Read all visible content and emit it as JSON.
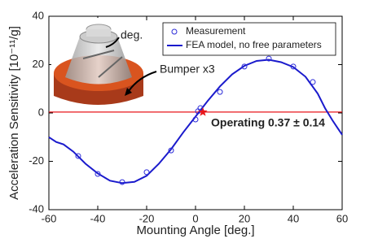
{
  "chart_data": {
    "type": "scatter-line",
    "xlabel": "Mounting Angle [deg.]",
    "ylabel": "Acceleration Sensitivity [10⁻¹¹/g]",
    "xlim": [
      -60,
      60
    ],
    "ylim": [
      -40,
      40
    ],
    "xticks": [
      -60,
      -40,
      -20,
      0,
      20,
      40,
      60
    ],
    "yticks": [
      -40,
      -20,
      0,
      20,
      40
    ],
    "legend": "upper right",
    "series": [
      {
        "name": "Measurement",
        "color": "#2b2bd8",
        "x": [
          -48,
          -40,
          -30,
          -20,
          -10,
          0,
          1,
          2,
          10,
          20,
          30,
          40,
          48
        ],
        "values": [
          -17.8,
          -25.2,
          -28.6,
          -24.5,
          -15.5,
          -2.7,
          0.7,
          2,
          8.7,
          19.2,
          22.5,
          19.2,
          12.8
        ]
      },
      {
        "name": "FEA model, no free parameters",
        "color": "#1a1acc",
        "x": [
          -60,
          -57,
          -54,
          -50,
          -45,
          -40,
          -35,
          -30,
          -25,
          -20,
          -15,
          -10,
          -5,
          0,
          5,
          10,
          15,
          20,
          25,
          30,
          35,
          40,
          45,
          50,
          53,
          56,
          58,
          60
        ],
        "values": [
          -10,
          -12,
          -13,
          -16,
          -21,
          -25,
          -28,
          -29,
          -28.5,
          -26,
          -21,
          -15,
          -8,
          -1.5,
          5,
          11,
          16,
          19.5,
          21.5,
          22,
          21,
          19,
          15,
          8,
          2,
          -3,
          -6,
          -9
        ]
      }
    ],
    "operating": {
      "label": "Operating 0.37 ± 0.14",
      "x": 3,
      "value": 0.37,
      "error": 0.14,
      "color": "#e8161b"
    },
    "inset_labels": [
      "deg.",
      "Bumper x3"
    ]
  }
}
